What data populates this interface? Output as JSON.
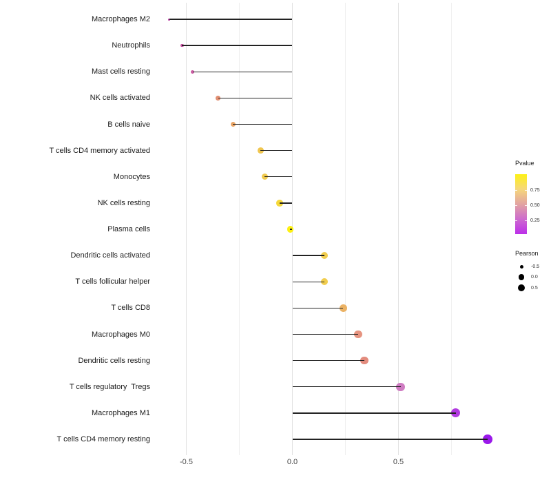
{
  "chart_data": {
    "type": "scatter",
    "subtype": "lollipop",
    "orientation": "horizontal",
    "title": "",
    "xlabel": "",
    "ylabel": "",
    "xlim": [
      -0.65,
      0.99
    ],
    "baseline_x": 0,
    "grid": true,
    "x_major_ticks": [
      -0.5,
      0.0,
      0.5
    ],
    "x_major_tick_labels": [
      "-0.5",
      "0.0",
      "0.5"
    ],
    "x_minor_ticks": [
      -0.25,
      0.25,
      0.75
    ],
    "categories": [
      "Macrophages M2",
      "Neutrophils",
      "Mast cells resting",
      "NK cells activated",
      "B cells naive",
      "T cells CD4 memory activated",
      "Monocytes",
      "NK cells resting",
      "Plasma cells",
      "Dendritic cells activated",
      "T cells follicular helper",
      "T cells CD8",
      "Macrophages M0",
      "Dendritic cells resting",
      "T cells regulatory  Tregs",
      "Macrophages M1",
      "T cells CD4 memory resting"
    ],
    "series": [
      {
        "name": "Pearson correlation",
        "values": [
          -0.58,
          -0.52,
          -0.47,
          -0.35,
          -0.28,
          -0.15,
          -0.13,
          -0.06,
          -0.01,
          0.15,
          0.15,
          0.24,
          0.31,
          0.34,
          0.51,
          0.77,
          0.92
        ]
      }
    ],
    "point_colors": [
      "#bc3ba5",
      "#c44f9f",
      "#cb5ba3",
      "#e28f72",
      "#eaa667",
      "#f0c64f",
      "#f0ca4e",
      "#f5d83a",
      "#fdf013",
      "#f1cd4e",
      "#f1cd4e",
      "#ebb264",
      "#e69480",
      "#e38c7e",
      "#cf7cc2",
      "#b13ae0",
      "#9a19ea"
    ],
    "point_diameters": [
      3,
      4.4,
      4.9,
      6.6,
      7.3,
      8.8,
      9.0,
      9.5,
      9.7,
      10.1,
      10.2,
      10.8,
      11.4,
      11.7,
      12.4,
      13.0,
      13.6
    ],
    "legends": {
      "pvalue": {
        "title": "Pvalue",
        "tick_labels": [
          "0.75",
          "0.50",
          "0.25"
        ],
        "gradient_top_to_bottom": [
          "#fdf115",
          "#f6d77b",
          "#e2a3a2",
          "#cd6bce",
          "#bc2ee9"
        ]
      },
      "pearson": {
        "title": "Pearson",
        "entries": [
          {
            "label": "-0.5",
            "diameter": 5
          },
          {
            "label": "0.0",
            "diameter": 8.5
          },
          {
            "label": "0.5",
            "diameter": 10.5
          }
        ]
      }
    }
  }
}
